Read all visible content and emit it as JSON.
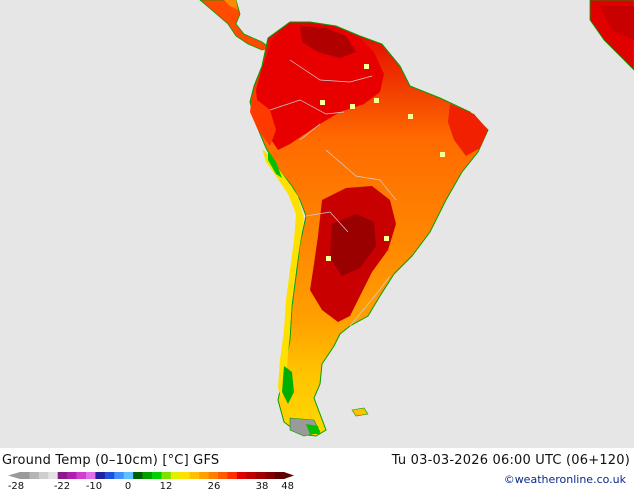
{
  "title_left": "Ground Temp (0–10cm) [°C] GFS",
  "title_right": "Tu 03-03-2026 06:00 UTC (06+120)",
  "credit": "©weatheronline.co.uk",
  "legend": {
    "ticks": [
      "-28",
      "-22",
      "-10",
      "0",
      "12",
      "26",
      "38",
      "48"
    ],
    "colors": [
      "#9a9a9a",
      "#b4b4b4",
      "#cecece",
      "#e3e3e3",
      "#8a1a8a",
      "#b020b0",
      "#d040d0",
      "#e070e8",
      "#2020a0",
      "#2050e0",
      "#4090ff",
      "#60c0ff",
      "#006000",
      "#00a000",
      "#00d000",
      "#80e000",
      "#e0f000",
      "#ffe000",
      "#ffc000",
      "#ffa000",
      "#ff8000",
      "#ff5a00",
      "#ff3000",
      "#e00000",
      "#c00000",
      "#a00000",
      "#800000",
      "#600000"
    ]
  },
  "map": {
    "ocean_color": "#e6e6e6",
    "coast_color": "#00a000",
    "hot_region": "Amazon / northern South America",
    "very_hot_region": "Chaco / Paraguay / northern Argentina",
    "cool_region": "Andes / Patagonia"
  }
}
